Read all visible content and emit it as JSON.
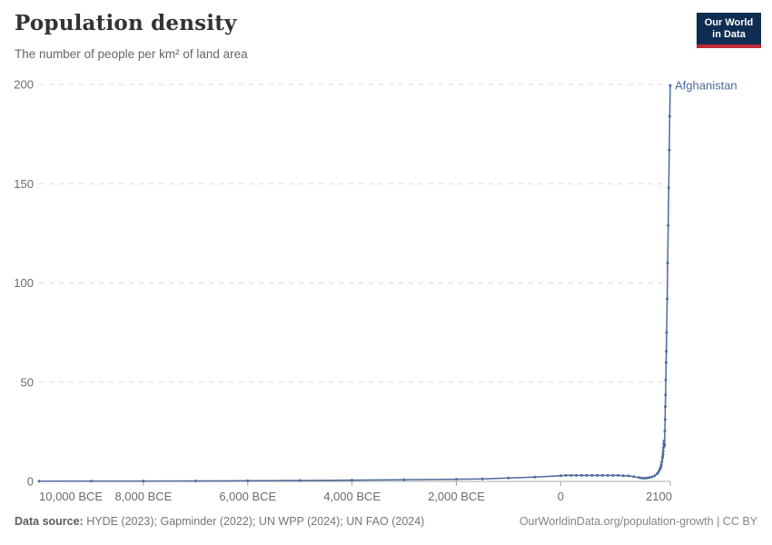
{
  "header": {
    "title": "Population density",
    "subtitle": "The number of people per km² of land area"
  },
  "logo": {
    "line1": "Our World",
    "line2": "in Data"
  },
  "footer": {
    "source_label": "Data source:",
    "source_text": " HYDE (2023); Gapminder (2022); UN WPP (2024); UN FAO (2024)",
    "link_text": "OurWorldinData.org/population-growth | CC BY"
  },
  "colors": {
    "line": "#4C6A9C",
    "grid": "#d9d9d9",
    "axis": "#a8a8a8",
    "tick_text": "#6b6b6b",
    "logo_bg": "#0E2D51",
    "logo_red": "#C12B35"
  },
  "chart_data": {
    "type": "line",
    "title": "Population density",
    "subtitle": "The number of people per km² of land area",
    "entity": "Afghanistan",
    "unit": "people per km² of land area",
    "xlim": [
      -10000,
      2100
    ],
    "ylim": [
      0,
      200
    ],
    "grid": true,
    "legend_position": "end-of-line",
    "yticks": [
      {
        "value": 0,
        "label": "0"
      },
      {
        "value": 50,
        "label": "50"
      },
      {
        "value": 100,
        "label": "100"
      },
      {
        "value": 150,
        "label": "150"
      },
      {
        "value": 200,
        "label": "200"
      }
    ],
    "xticks": [
      {
        "year": -10000,
        "label": "10,000 BCE",
        "align": "start",
        "tick": false
      },
      {
        "year": -8000,
        "label": "8,000 BCE"
      },
      {
        "year": -6000,
        "label": "6,000 BCE"
      },
      {
        "year": -4000,
        "label": "4,000 BCE"
      },
      {
        "year": -2000,
        "label": "2,000 BCE"
      },
      {
        "year": 0,
        "label": "0"
      },
      {
        "year": 2100,
        "label": "2100",
        "align": "end"
      }
    ],
    "series": [
      {
        "name": "Afghanistan",
        "color": "#4C6A9C",
        "points": [
          [
            -10000,
            0.16
          ],
          [
            -9000,
            0.17
          ],
          [
            -8000,
            0.2
          ],
          [
            -7000,
            0.25
          ],
          [
            -6000,
            0.32
          ],
          [
            -5000,
            0.45
          ],
          [
            -4000,
            0.62
          ],
          [
            -3000,
            0.85
          ],
          [
            -2000,
            1.1
          ],
          [
            -1500,
            1.3
          ],
          [
            -1000,
            1.7
          ],
          [
            -500,
            2.2
          ],
          [
            0,
            2.9
          ],
          [
            100,
            3.0
          ],
          [
            200,
            3.0
          ],
          [
            300,
            3.0
          ],
          [
            400,
            3.0
          ],
          [
            500,
            3.0
          ],
          [
            600,
            3.0
          ],
          [
            700,
            3.0
          ],
          [
            800,
            3.0
          ],
          [
            900,
            3.0
          ],
          [
            1000,
            3.0
          ],
          [
            1100,
            3.0
          ],
          [
            1200,
            2.9
          ],
          [
            1300,
            2.8
          ],
          [
            1400,
            2.4
          ],
          [
            1500,
            1.9
          ],
          [
            1550,
            1.7
          ],
          [
            1600,
            1.6
          ],
          [
            1650,
            1.7
          ],
          [
            1700,
            1.9
          ],
          [
            1750,
            2.3
          ],
          [
            1800,
            2.9
          ],
          [
            1850,
            3.9
          ],
          [
            1875,
            4.8
          ],
          [
            1900,
            6.0
          ],
          [
            1910,
            6.7
          ],
          [
            1920,
            7.5
          ],
          [
            1930,
            8.6
          ],
          [
            1940,
            10.0
          ],
          [
            1950,
            11.7
          ],
          [
            1955,
            12.7
          ],
          [
            1960,
            13.9
          ],
          [
            1965,
            15.3
          ],
          [
            1970,
            17.0
          ],
          [
            1975,
            19.0
          ],
          [
            1980,
            20.4
          ],
          [
            1985,
            17.8
          ],
          [
            1990,
            18.5
          ],
          [
            1995,
            25.4
          ],
          [
            2000,
            31.2
          ],
          [
            2005,
            37.6
          ],
          [
            2010,
            43.6
          ],
          [
            2015,
            51.1
          ],
          [
            2020,
            59.8
          ],
          [
            2024,
            65.5
          ],
          [
            2030,
            75
          ],
          [
            2040,
            92
          ],
          [
            2050,
            110
          ],
          [
            2060,
            129
          ],
          [
            2070,
            148
          ],
          [
            2080,
            167
          ],
          [
            2090,
            184
          ],
          [
            2100,
            199.5
          ]
        ]
      }
    ]
  }
}
